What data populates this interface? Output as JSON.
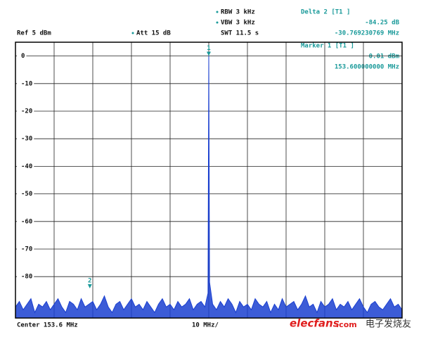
{
  "chart_data": {
    "type": "line",
    "header": {
      "ref": "Ref  5 dBm",
      "att": "Att  15 dB",
      "rbw": "RBW 3 kHz",
      "vbw": "VBW 3 kHz",
      "swt": "SWT 11.5 s"
    },
    "marker_info": {
      "delta_title": "Delta 2 [T1 ]",
      "delta_level": "-84.25 dB",
      "delta_freq": "-30.769230769 MHz",
      "marker_title": "Marker 1 [T1 ]",
      "marker_level": "0.01 dBm",
      "marker_freq": "153.600000000 MHz"
    },
    "footer": {
      "center": "Center  153.6 MHz",
      "span": "10 MHz/"
    },
    "watermark": {
      "brand": "elecfans",
      "domain": ".com",
      "tagline": "电子发烧友"
    },
    "color": "#1a3fd0",
    "grid": true,
    "xlim": [
      103.6,
      203.6
    ],
    "xticks": [
      103.6,
      113.6,
      123.6,
      133.6,
      143.6,
      153.6,
      163.6,
      173.6,
      183.6,
      193.6,
      203.6
    ],
    "ylim": [
      -95,
      5
    ],
    "yticks": [
      0,
      -10,
      -20,
      -30,
      -40,
      -50,
      -60,
      -70,
      -80
    ],
    "markers": [
      {
        "label": "1",
        "x": 153.6,
        "y": 0.01
      },
      {
        "label": "2",
        "x": 122.830769231,
        "y": -84.24
      }
    ],
    "x": [
      103.6,
      104.6,
      105.6,
      106.6,
      107.6,
      108.6,
      109.6,
      110.6,
      111.6,
      112.6,
      113.6,
      114.6,
      115.6,
      116.6,
      117.6,
      118.6,
      119.6,
      120.6,
      121.6,
      122.6,
      123.6,
      124.6,
      125.6,
      126.6,
      127.6,
      128.6,
      129.6,
      130.6,
      131.6,
      132.6,
      133.6,
      134.6,
      135.6,
      136.6,
      137.6,
      138.6,
      139.6,
      140.6,
      141.6,
      142.6,
      143.6,
      144.6,
      145.6,
      146.6,
      147.6,
      148.6,
      149.6,
      150.6,
      151.6,
      152.6,
      153.4,
      153.6,
      153.8,
      154.6,
      155.6,
      156.6,
      157.6,
      158.6,
      159.6,
      160.6,
      161.6,
      162.6,
      163.6,
      164.6,
      165.6,
      166.6,
      167.6,
      168.6,
      169.6,
      170.6,
      171.6,
      172.6,
      173.6,
      174.6,
      175.6,
      176.6,
      177.6,
      178.6,
      179.6,
      180.6,
      181.6,
      182.6,
      183.6,
      184.6,
      185.6,
      186.6,
      187.6,
      188.6,
      189.6,
      190.6,
      191.6,
      192.6,
      193.6,
      194.6,
      195.6,
      196.6,
      197.6,
      198.6,
      199.6,
      200.6,
      201.6,
      202.6,
      203.6
    ],
    "values": [
      -91,
      -89,
      -92,
      -90,
      -88,
      -93,
      -90,
      -91,
      -89,
      -92,
      -90,
      -88,
      -91,
      -93,
      -89,
      -90,
      -92,
      -88,
      -91,
      -90,
      -89,
      -92,
      -90,
      -87,
      -91,
      -93,
      -90,
      -89,
      -92,
      -90,
      -88,
      -91,
      -90,
      -92,
      -89,
      -91,
      -93,
      -90,
      -88,
      -91,
      -90,
      -92,
      -89,
      -91,
      -90,
      -88,
      -92,
      -90,
      -89,
      -91,
      -86,
      0.01,
      -82,
      -90,
      -92,
      -89,
      -91,
      -88,
      -90,
      -93,
      -89,
      -91,
      -90,
      -92,
      -88,
      -90,
      -91,
      -89,
      -93,
      -90,
      -92,
      -88,
      -91,
      -90,
      -89,
      -92,
      -90,
      -87,
      -91,
      -90,
      -93,
      -89,
      -91,
      -90,
      -88,
      -92,
      -90,
      -91,
      -89,
      -92,
      -90,
      -88,
      -91,
      -93,
      -90,
      -89,
      -91,
      -92,
      -90,
      -88,
      -91,
      -90,
      -92
    ]
  }
}
